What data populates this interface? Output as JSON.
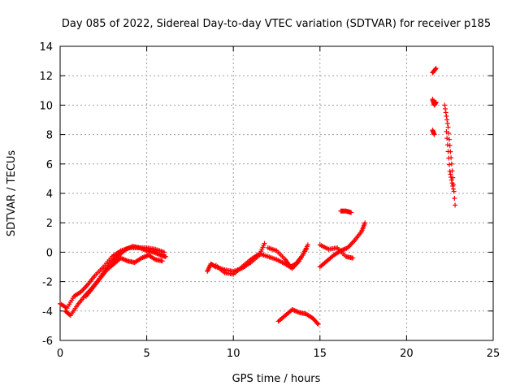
{
  "chart_data": {
    "type": "scatter",
    "title": "Day 085 of 2022, Sidereal Day-to-day VTEC variation (SDTVAR) for receiver p185",
    "xlabel": "GPS time / hours",
    "ylabel": "SDTVAR / TECUs",
    "xlim": [
      0,
      25
    ],
    "ylim": [
      -6,
      14
    ],
    "xticks": [
      "0",
      "5",
      "10",
      "15",
      "20",
      "25"
    ],
    "yticks": [
      "-6",
      "-4",
      "-2",
      "0",
      "2",
      "4",
      "6",
      "8",
      "10",
      "12",
      "14"
    ],
    "grid": true,
    "marker": "+",
    "color": "#ff0000",
    "series": [
      {
        "name": "SDTVAR",
        "tracks": [
          {
            "x": [
              0.0,
              0.4,
              0.8,
              1.2,
              1.6,
              2.0,
              2.5,
              3.0,
              3.5,
              4.0,
              4.5,
              5.0,
              5.5,
              6.0
            ],
            "y": [
              -3.5,
              -3.8,
              -3.0,
              -2.7,
              -2.2,
              -1.6,
              -1.0,
              -0.3,
              0.1,
              0.3,
              0.3,
              0.3,
              0.2,
              0.0
            ]
          },
          {
            "x": [
              0.3,
              0.6,
              1.0,
              1.4,
              1.8,
              2.2,
              2.6,
              3.0,
              3.4,
              3.8,
              4.2,
              4.6,
              5.0,
              5.4,
              5.8,
              6.1
            ],
            "y": [
              -4.0,
              -4.3,
              -3.6,
              -3.0,
              -2.5,
              -1.9,
              -1.2,
              -0.6,
              -0.2,
              0.2,
              0.4,
              0.3,
              0.1,
              0.0,
              -0.2,
              -0.3
            ]
          },
          {
            "x": [
              1.5,
              1.9,
              2.3,
              2.7,
              3.1,
              3.5,
              3.9,
              4.3,
              4.7,
              5.1,
              5.5,
              5.9
            ],
            "y": [
              -3.0,
              -2.4,
              -1.8,
              -1.2,
              -0.8,
              -0.4,
              -0.6,
              -0.7,
              -0.4,
              -0.2,
              -0.5,
              -0.6
            ]
          },
          {
            "x": [
              8.5,
              8.7,
              9.0,
              9.5,
              10.0,
              10.5,
              11.0,
              11.5,
              11.8
            ],
            "y": [
              -1.3,
              -0.8,
              -1.0,
              -1.2,
              -1.3,
              -1.1,
              -0.7,
              -0.2,
              0.6
            ]
          },
          {
            "x": [
              9.0,
              9.5,
              10.0,
              10.5,
              11.0,
              11.5,
              12.0,
              12.5,
              13.0,
              13.4,
              13.8,
              14.2
            ],
            "y": [
              -0.9,
              -1.4,
              -1.5,
              -1.0,
              -0.5,
              -0.1,
              -0.3,
              -0.5,
              -0.8,
              -1.1,
              -0.6,
              0.2
            ]
          },
          {
            "x": [
              12.0,
              12.5,
              13.0,
              13.3,
              13.6,
              14.0,
              14.3
            ],
            "y": [
              0.3,
              0.1,
              -0.5,
              -1.0,
              -0.8,
              -0.2,
              0.5
            ]
          },
          {
            "x": [
              12.6,
              13.0,
              13.4,
              13.8,
              14.2,
              14.6,
              14.9
            ],
            "y": [
              -4.7,
              -4.3,
              -3.9,
              -4.1,
              -4.2,
              -4.5,
              -4.9
            ]
          },
          {
            "x": [
              15.0,
              15.4,
              15.8,
              16.2,
              16.6,
              17.0,
              17.4,
              17.6
            ],
            "y": [
              -1.0,
              -0.6,
              -0.2,
              0.1,
              0.3,
              0.8,
              1.4,
              2.0
            ]
          },
          {
            "x": [
              15.0,
              15.5,
              16.0,
              16.5,
              16.9
            ],
            "y": [
              0.5,
              0.2,
              0.3,
              -0.3,
              -0.4
            ]
          },
          {
            "x": [
              16.2,
              16.5,
              16.8
            ],
            "y": [
              2.8,
              2.8,
              2.7
            ]
          },
          {
            "x": [
              21.5,
              21.7
            ],
            "y": [
              12.2,
              12.5
            ]
          },
          {
            "x": [
              21.5,
              21.6,
              21.7
            ],
            "y": [
              10.4,
              10.0,
              10.2
            ]
          },
          {
            "x": [
              21.5,
              21.6
            ],
            "y": [
              8.3,
              8.0
            ]
          },
          {
            "x": [
              22.2,
              22.4,
              22.6,
              22.8
            ],
            "y": [
              10.0,
              8.5,
              6.0,
              3.2
            ]
          },
          {
            "x": [
              22.3,
              22.5,
              22.7
            ],
            "y": [
              8.2,
              5.5,
              4.3
            ]
          }
        ]
      }
    ]
  }
}
